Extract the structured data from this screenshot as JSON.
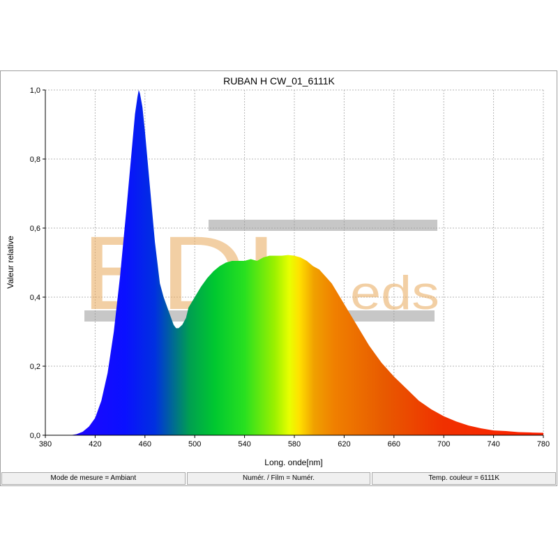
{
  "chart_data": {
    "type": "area",
    "title": "RUBAN H CW_01_6111K",
    "xlabel": "Long. onde[nm]",
    "ylabel": "Valeur relative",
    "xlim": [
      380,
      780
    ],
    "ylim": [
      0,
      1.0
    ],
    "x_ticks": [
      "380",
      "420",
      "460",
      "500",
      "540",
      "580",
      "620",
      "660",
      "700",
      "740",
      "780"
    ],
    "y_ticks": [
      "0,0",
      "0,2",
      "0,4",
      "0,6",
      "0,8",
      "1,0"
    ],
    "grid": true,
    "series": [
      {
        "x": [
          380,
          400,
          405,
          410,
          415,
          420,
          425,
          430,
          435,
          440,
          445,
          450,
          452,
          454,
          455,
          456,
          458,
          460,
          462,
          465,
          468,
          470,
          472,
          475,
          478,
          480,
          483,
          485,
          487,
          490,
          493,
          495,
          500,
          505,
          510,
          515,
          520,
          525,
          530,
          535,
          540,
          545,
          550,
          555,
          560,
          565,
          570,
          575,
          580,
          585,
          590,
          595,
          600,
          605,
          610,
          615,
          620,
          630,
          640,
          650,
          660,
          670,
          680,
          690,
          700,
          710,
          720,
          730,
          740,
          750,
          760,
          770,
          780
        ],
        "y": [
          0.0,
          0.0,
          0.003,
          0.01,
          0.025,
          0.05,
          0.1,
          0.18,
          0.3,
          0.46,
          0.65,
          0.85,
          0.93,
          0.98,
          1.0,
          0.99,
          0.95,
          0.88,
          0.8,
          0.68,
          0.56,
          0.5,
          0.44,
          0.4,
          0.37,
          0.35,
          0.32,
          0.31,
          0.31,
          0.32,
          0.34,
          0.37,
          0.4,
          0.43,
          0.455,
          0.475,
          0.49,
          0.5,
          0.505,
          0.505,
          0.505,
          0.51,
          0.505,
          0.515,
          0.52,
          0.52,
          0.52,
          0.522,
          0.52,
          0.515,
          0.505,
          0.49,
          0.48,
          0.46,
          0.44,
          0.41,
          0.38,
          0.32,
          0.26,
          0.21,
          0.17,
          0.135,
          0.1,
          0.075,
          0.055,
          0.04,
          0.028,
          0.02,
          0.014,
          0.012,
          0.009,
          0.008,
          0.007
        ]
      }
    ],
    "watermark": {
      "logo": "BDLeds"
    },
    "colors": {
      "grid": "#b4b4b4",
      "axis": "#000000",
      "watermark": "#e9a95a",
      "watermark_bar": "#999999"
    }
  },
  "statusbar": [
    {
      "label": "Mode de mesure = Ambiant"
    },
    {
      "label": "Numér. / Film = Numér."
    },
    {
      "label": "Temp. couleur = 6111K"
    }
  ]
}
